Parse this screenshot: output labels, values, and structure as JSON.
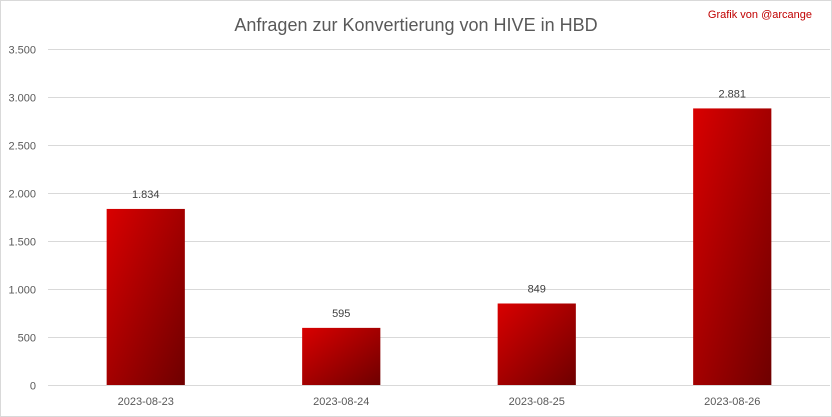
{
  "credit": "Grafik von @arcange",
  "chart_data": {
    "type": "bar",
    "title": "Anfragen zur Konvertierung von HIVE in HBD",
    "xlabel": "",
    "ylabel": "",
    "categories": [
      "2023-08-23",
      "2023-08-24",
      "2023-08-25",
      "2023-08-26"
    ],
    "values": [
      1834,
      595,
      849,
      2881
    ],
    "value_labels": [
      "1.834",
      "595",
      "849",
      "2.881"
    ],
    "ylim": [
      0,
      3500
    ],
    "yticks": [
      0,
      500,
      1000,
      1500,
      2000,
      2500,
      3000,
      3500
    ],
    "ytick_labels": [
      "0",
      "500",
      "1.000",
      "1.500",
      "2.000",
      "2.500",
      "3.000",
      "3.500"
    ],
    "grid": true,
    "legend": "none",
    "colors": {
      "bar_light": "#d90000",
      "bar_dark": "#6e0000",
      "grid": "#d9d9d9",
      "credit": "#c00000"
    }
  }
}
